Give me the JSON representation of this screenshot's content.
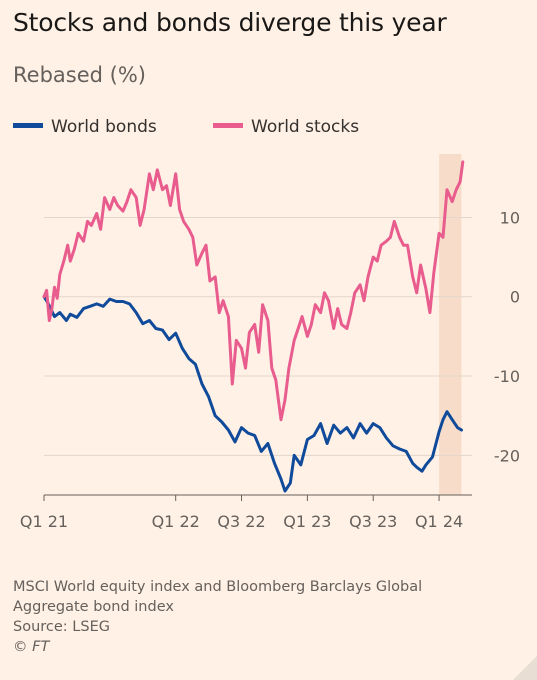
{
  "title": "Stocks and bonds diverge this year",
  "subtitle": "Rebased (%)",
  "footer": {
    "note_line1": "MSCI World equity index and Bloomberg Barclays Global",
    "note_line2": "Aggregate bond index",
    "source": "Source: LSEG",
    "copyright": "© FT"
  },
  "colors": {
    "background": "#FFF1E5",
    "bonds": "#0F4A9B",
    "stocks": "#E85C8E",
    "highlight": "#F7DDC9",
    "grid": "#E3D6CA"
  },
  "chart_data": {
    "type": "line",
    "title": "Stocks and bonds diverge this year",
    "ylabel": "Rebased (%)",
    "x_range": [
      2021.0,
      2024.25
    ],
    "ylim": [
      -25,
      18
    ],
    "y_ticks": [
      10,
      0,
      -10,
      -20
    ],
    "x_ticks": [
      {
        "label": "Q1 21",
        "x": 2021.0
      },
      {
        "label": "Q1 22",
        "x": 2022.0
      },
      {
        "label": "Q3 22",
        "x": 2022.5
      },
      {
        "label": "Q1 23",
        "x": 2023.0
      },
      {
        "label": "Q3 23",
        "x": 2023.5
      },
      {
        "label": "Q1 24",
        "x": 2024.0
      }
    ],
    "highlight_range": [
      2024.0,
      2024.17
    ],
    "legend_position": "top-left",
    "series": [
      {
        "name": "World bonds",
        "color": "#0F4A9B",
        "x": [
          2021.0,
          2021.02,
          2021.05,
          2021.08,
          2021.12,
          2021.17,
          2021.2,
          2021.25,
          2021.3,
          2021.35,
          2021.4,
          2021.45,
          2021.5,
          2021.55,
          2021.6,
          2021.65,
          2021.7,
          2021.75,
          2021.8,
          2021.85,
          2021.9,
          2021.95,
          2022.0,
          2022.05,
          2022.1,
          2022.15,
          2022.2,
          2022.25,
          2022.3,
          2022.35,
          2022.4,
          2022.45,
          2022.5,
          2022.55,
          2022.6,
          2022.65,
          2022.7,
          2022.75,
          2022.8,
          2022.83,
          2022.87,
          2022.9,
          2022.95,
          2023.0,
          2023.05,
          2023.1,
          2023.15,
          2023.2,
          2023.25,
          2023.3,
          2023.35,
          2023.4,
          2023.45,
          2023.5,
          2023.55,
          2023.6,
          2023.65,
          2023.7,
          2023.75,
          2023.8,
          2023.83,
          2023.87,
          2023.9,
          2023.95,
          2024.0,
          2024.03,
          2024.06,
          2024.1,
          2024.14,
          2024.17
        ],
        "values": [
          0,
          -0.5,
          -1.5,
          -2.5,
          -2.0,
          -3.0,
          -2.2,
          -2.6,
          -1.5,
          -1.2,
          -0.9,
          -1.2,
          -0.3,
          -0.6,
          -0.6,
          -0.9,
          -2.0,
          -3.4,
          -3.0,
          -4.0,
          -4.2,
          -5.4,
          -4.6,
          -6.5,
          -7.8,
          -8.5,
          -11,
          -12.6,
          -15,
          -15.8,
          -16.8,
          -18.3,
          -16.5,
          -17.2,
          -17.5,
          -19.5,
          -18.5,
          -21,
          -23,
          -24.5,
          -23.5,
          -20,
          -21.2,
          -18,
          -17.5,
          -16,
          -18.5,
          -16.2,
          -17.2,
          -16.5,
          -17.8,
          -16,
          -17.2,
          -16,
          -16.5,
          -17.8,
          -18.8,
          -19.2,
          -19.5,
          -21,
          -21.5,
          -22,
          -21.2,
          -20.2,
          -17,
          -15.5,
          -14.5,
          -15.5,
          -16.5,
          -16.8
        ]
      },
      {
        "name": "World stocks",
        "color": "#E85C8E",
        "x": [
          2021.0,
          2021.02,
          2021.04,
          2021.06,
          2021.08,
          2021.1,
          2021.12,
          2021.15,
          2021.18,
          2021.2,
          2021.23,
          2021.26,
          2021.3,
          2021.33,
          2021.36,
          2021.4,
          2021.43,
          2021.46,
          2021.5,
          2021.53,
          2021.56,
          2021.6,
          2021.63,
          2021.66,
          2021.7,
          2021.73,
          2021.76,
          2021.8,
          2021.83,
          2021.86,
          2021.9,
          2021.93,
          2021.96,
          2022.0,
          2022.03,
          2022.06,
          2022.1,
          2022.13,
          2022.16,
          2022.2,
          2022.23,
          2022.26,
          2022.3,
          2022.33,
          2022.36,
          2022.4,
          2022.43,
          2022.46,
          2022.5,
          2022.53,
          2022.56,
          2022.6,
          2022.63,
          2022.66,
          2022.7,
          2022.73,
          2022.76,
          2022.8,
          2022.83,
          2022.86,
          2022.9,
          2022.93,
          2022.96,
          2023.0,
          2023.03,
          2023.06,
          2023.1,
          2023.13,
          2023.16,
          2023.2,
          2023.23,
          2023.26,
          2023.3,
          2023.33,
          2023.36,
          2023.4,
          2023.43,
          2023.46,
          2023.5,
          2023.53,
          2023.56,
          2023.6,
          2023.63,
          2023.66,
          2023.7,
          2023.73,
          2023.76,
          2023.8,
          2023.83,
          2023.86,
          2023.9,
          2023.93,
          2023.96,
          2024.0,
          2024.03,
          2024.06,
          2024.1,
          2024.13,
          2024.16,
          2024.18
        ],
        "values": [
          0,
          0.8,
          -3.0,
          -1.5,
          1.2,
          -0.2,
          2.8,
          4.5,
          6.5,
          4.5,
          6.0,
          8.0,
          7.0,
          9.5,
          9.0,
          10.5,
          8.5,
          12.5,
          11.0,
          12.5,
          11.5,
          10.8,
          12.0,
          13.5,
          12.5,
          9.0,
          11.0,
          15.5,
          13.5,
          16.0,
          13.5,
          14.0,
          11.5,
          15.5,
          11.0,
          9.5,
          8.5,
          7.5,
          4.0,
          5.5,
          6.5,
          2.0,
          2.5,
          -2.0,
          -0.5,
          -2.5,
          -11.0,
          -5.5,
          -6.5,
          -9.0,
          -4.5,
          -3.5,
          -7.0,
          -1.0,
          -3.0,
          -9.0,
          -10.5,
          -15.5,
          -13.0,
          -9.0,
          -5.5,
          -4.0,
          -2.5,
          -5.0,
          -3.5,
          -1.0,
          -2.0,
          0.5,
          -0.5,
          -4.0,
          -1.5,
          -3.5,
          -4.0,
          -2.0,
          0.5,
          1.5,
          -0.5,
          2.5,
          5.0,
          4.5,
          6.5,
          7.0,
          7.5,
          9.5,
          7.5,
          6.5,
          6.5,
          2.5,
          0.5,
          4.0,
          1.0,
          -2.0,
          3.0,
          8.0,
          7.5,
          13.5,
          12.0,
          13.5,
          14.5,
          17.0
        ]
      }
    ]
  }
}
